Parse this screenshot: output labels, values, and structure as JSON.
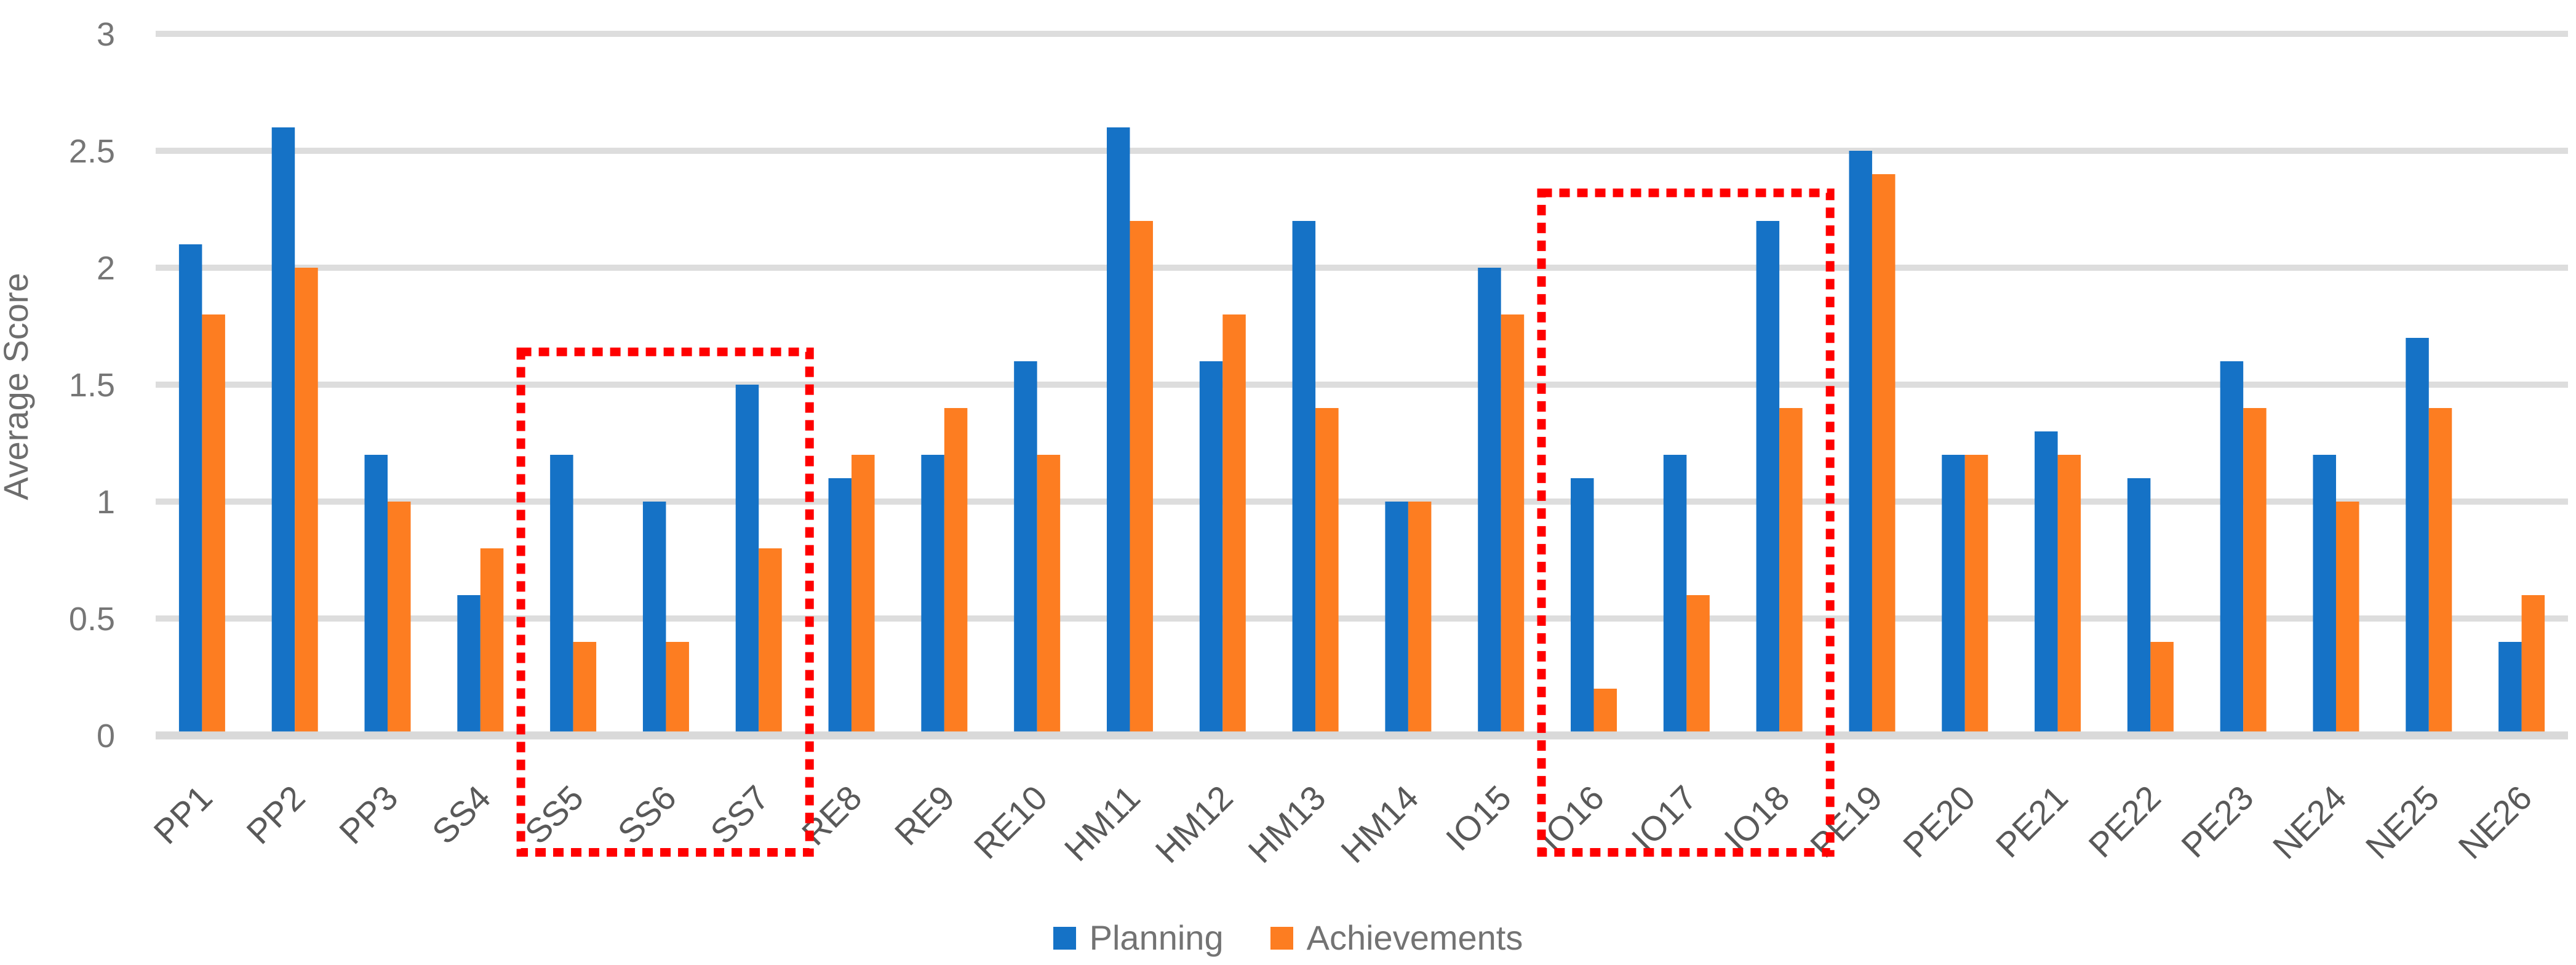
{
  "chart_data": {
    "type": "bar",
    "title": "",
    "xlabel": "",
    "ylabel": "Average Score",
    "ylim": [
      0,
      3
    ],
    "ytick_step": 0.5,
    "yticks": [
      "0",
      "0.5",
      "1",
      "1.5",
      "2",
      "2.5",
      "3"
    ],
    "grid": true,
    "legend_position": "bottom",
    "categories": [
      "PP1",
      "PP2",
      "PP3",
      "SS4",
      "SS5",
      "SS6",
      "SS7",
      "RE8",
      "RE9",
      "RE10",
      "HM11",
      "HM12",
      "HM13",
      "HM14",
      "IO15",
      "IO16",
      "IO17",
      "IO18",
      "PE19",
      "PE20",
      "PE21",
      "PE22",
      "PE23",
      "NE24",
      "NE25",
      "NE26"
    ],
    "series": [
      {
        "name": "Planning",
        "color": "#1572C6",
        "values": [
          2.1,
          2.6,
          1.2,
          0.6,
          1.2,
          1.0,
          1.5,
          1.1,
          1.2,
          1.6,
          2.6,
          1.6,
          2.2,
          1.0,
          2.0,
          1.1,
          1.2,
          2.2,
          2.5,
          1.2,
          1.3,
          1.1,
          1.6,
          1.2,
          1.7,
          0.4
        ]
      },
      {
        "name": "Achievements",
        "color": "#FD7D21",
        "values": [
          1.8,
          2.0,
          1.0,
          0.8,
          0.4,
          0.4,
          0.8,
          1.2,
          1.4,
          1.2,
          2.2,
          1.8,
          1.4,
          1.0,
          1.8,
          0.2,
          0.6,
          1.4,
          2.4,
          1.2,
          1.2,
          0.4,
          1.4,
          1.0,
          1.4,
          0.6
        ]
      }
    ],
    "annotations": [
      {
        "type": "dashed-box",
        "from_category": "SS5",
        "to_category": "SS7",
        "top_value": 1.64,
        "color": "#FF0000"
      },
      {
        "type": "dashed-box",
        "from_category": "IO16",
        "to_category": "IO18",
        "top_value": 2.32,
        "color": "#FF0000"
      }
    ]
  },
  "styles": {
    "background": "#FFFFFF",
    "gridline_color": "#DDDDDD",
    "axis_line_color": "#D9D9D9",
    "tick_text_color": "#767676",
    "category_text_color": "#595959",
    "legend_text_color": "#737373",
    "annotation_color": "#FF0000"
  }
}
